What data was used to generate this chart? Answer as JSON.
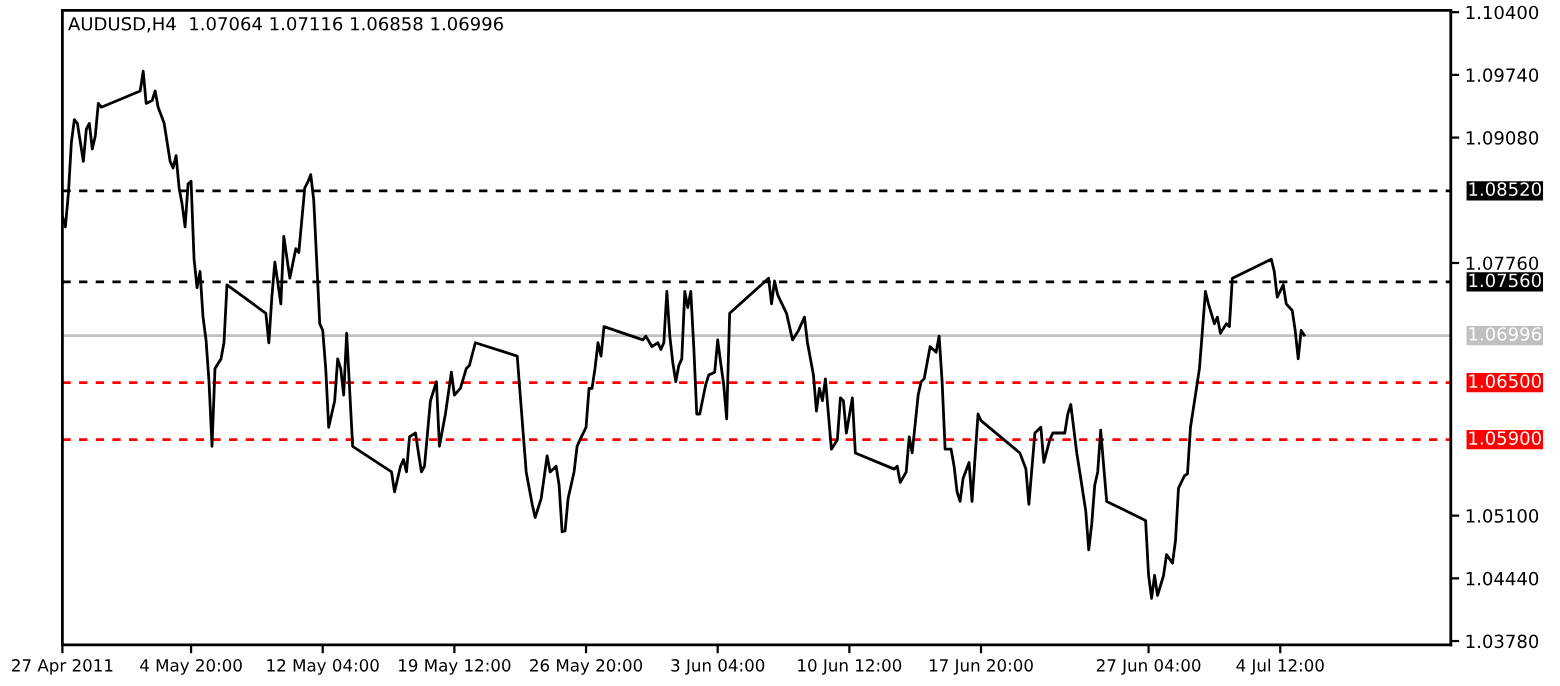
{
  "chart_data": {
    "type": "line",
    "title": "AUDUSD,H4  1.07064 1.07116 1.06858 1.06996",
    "x": [
      "2011-04-27T16:00",
      "2011-04-27T20:00",
      "2011-04-28T00:00",
      "2011-04-28T04:00",
      "2011-04-28T08:00",
      "2011-04-28T12:00",
      "2011-04-28T20:00",
      "2011-04-29T00:00",
      "2011-04-29T04:00",
      "2011-04-29T08:00",
      "2011-04-29T12:00",
      "2011-04-29T16:00",
      "2011-04-29T20:00",
      "2011-05-02T00:00",
      "2011-05-02T04:00",
      "2011-05-02T08:00",
      "2011-05-02T16:00",
      "2011-05-02T20:00",
      "2011-05-03T00:00",
      "2011-05-03T08:00",
      "2011-05-03T16:00",
      "2011-05-03T20:00",
      "2011-05-04T00:00",
      "2011-05-04T04:00",
      "2011-05-04T08:00",
      "2011-05-04T12:00",
      "2011-05-04T16:00",
      "2011-05-04T20:00",
      "2011-05-05T00:00",
      "2011-05-05T04:00",
      "2011-05-05T08:00",
      "2011-05-05T12:00",
      "2011-05-05T16:00",
      "2011-05-05T20:00",
      "2011-05-06T00:00",
      "2011-05-06T04:00",
      "2011-05-06T12:00",
      "2011-05-06T16:00",
      "2011-05-06T20:00",
      "2011-05-09T00:00",
      "2011-05-09T04:00",
      "2011-05-09T08:00",
      "2011-05-09T12:00",
      "2011-05-09T20:00",
      "2011-05-10T00:00",
      "2011-05-10T08:00",
      "2011-05-10T16:00",
      "2011-05-10T20:00",
      "2011-05-11T04:00",
      "2011-05-11T08:00",
      "2011-05-11T12:00",
      "2011-05-11T16:00",
      "2011-05-12T00:00",
      "2011-05-12T04:00",
      "2011-05-12T08:00",
      "2011-05-12T12:00",
      "2011-05-12T20:00",
      "2011-05-13T00:00",
      "2011-05-13T04:00",
      "2011-05-13T08:00",
      "2011-05-13T12:00",
      "2011-05-13T20:00",
      "2011-05-16T00:00",
      "2011-05-16T04:00",
      "2011-05-16T12:00",
      "2011-05-16T16:00",
      "2011-05-16T20:00",
      "2011-05-17T00:00",
      "2011-05-17T08:00",
      "2011-05-17T12:00",
      "2011-05-17T16:00",
      "2011-05-17T20:00",
      "2011-05-18T04:00",
      "2011-05-18T12:00",
      "2011-05-18T16:00",
      "2011-05-19T00:00",
      "2011-05-19T08:00",
      "2011-05-19T12:00",
      "2011-05-19T20:00",
      "2011-05-20T04:00",
      "2011-05-20T08:00",
      "2011-05-20T16:00",
      "2011-05-23T00:00",
      "2011-05-23T04:00",
      "2011-05-23T12:00",
      "2011-05-23T20:00",
      "2011-05-24T00:00",
      "2011-05-24T08:00",
      "2011-05-24T16:00",
      "2011-05-24T20:00",
      "2011-05-25T04:00",
      "2011-05-25T08:00",
      "2011-05-25T12:00",
      "2011-05-25T16:00",
      "2011-05-25T20:00",
      "2011-05-26T04:00",
      "2011-05-26T08:00",
      "2011-05-26T12:00",
      "2011-05-26T20:00",
      "2011-05-27T00:00",
      "2011-05-27T04:00",
      "2011-05-27T08:00",
      "2011-05-27T12:00",
      "2011-05-27T16:00",
      "2011-05-27T20:00",
      "2011-05-30T00:00",
      "2011-05-30T04:00",
      "2011-05-30T12:00",
      "2011-05-30T20:00",
      "2011-05-31T00:00",
      "2011-05-31T04:00",
      "2011-05-31T08:00",
      "2011-05-31T12:00",
      "2011-05-31T16:00",
      "2011-05-31T20:00",
      "2011-06-01T00:00",
      "2011-06-01T04:00",
      "2011-06-01T08:00",
      "2011-06-01T12:00",
      "2011-06-01T16:00",
      "2011-06-01T20:00",
      "2011-06-02T00:00",
      "2011-06-02T04:00",
      "2011-06-02T12:00",
      "2011-06-02T16:00",
      "2011-06-03T00:00",
      "2011-06-03T04:00",
      "2011-06-03T08:00",
      "2011-06-03T12:00",
      "2011-06-03T16:00",
      "2011-06-03T20:00",
      "2011-06-06T00:00",
      "2011-06-06T04:00",
      "2011-06-06T08:00",
      "2011-06-06T12:00",
      "2011-06-06T16:00",
      "2011-06-07T00:00",
      "2011-06-07T08:00",
      "2011-06-07T16:00",
      "2011-06-08T00:00",
      "2011-06-08T04:00",
      "2011-06-08T12:00",
      "2011-06-08T16:00",
      "2011-06-08T20:00",
      "2011-06-09T00:00",
      "2011-06-09T04:00",
      "2011-06-09T08:00",
      "2011-06-09T12:00",
      "2011-06-09T20:00",
      "2011-06-10T00:00",
      "2011-06-10T04:00",
      "2011-06-10T08:00",
      "2011-06-10T16:00",
      "2011-06-10T20:00",
      "2011-06-13T00:00",
      "2011-06-13T04:00",
      "2011-06-13T08:00",
      "2011-06-13T16:00",
      "2011-06-13T20:00",
      "2011-06-14T00:00",
      "2011-06-14T08:00",
      "2011-06-14T12:00",
      "2011-06-14T16:00",
      "2011-06-15T00:00",
      "2011-06-15T08:00",
      "2011-06-15T12:00",
      "2011-06-15T16:00",
      "2011-06-15T20:00",
      "2011-06-16T04:00",
      "2011-06-16T08:00",
      "2011-06-16T12:00",
      "2011-06-16T16:00",
      "2011-06-16T20:00",
      "2011-06-17T04:00",
      "2011-06-17T08:00",
      "2011-06-17T16:00",
      "2011-06-17T20:00",
      "2011-06-20T00:00",
      "2011-06-20T08:00",
      "2011-06-20T12:00",
      "2011-06-20T20:00",
      "2011-06-21T04:00",
      "2011-06-21T08:00",
      "2011-06-21T16:00",
      "2011-06-21T20:00",
      "2011-06-22T04:00",
      "2011-06-22T12:00",
      "2011-06-22T16:00",
      "2011-06-22T20:00",
      "2011-06-23T04:00",
      "2011-06-23T08:00",
      "2011-06-23T16:00",
      "2011-06-23T20:00",
      "2011-06-24T00:00",
      "2011-06-24T04:00",
      "2011-06-24T08:00",
      "2011-06-24T12:00",
      "2011-06-24T16:00",
      "2011-06-24T20:00",
      "2011-06-27T00:00",
      "2011-06-27T04:00",
      "2011-06-27T08:00",
      "2011-06-27T12:00",
      "2011-06-27T16:00",
      "2011-06-28T00:00",
      "2011-06-28T04:00",
      "2011-06-28T12:00",
      "2011-06-28T16:00",
      "2011-06-28T20:00",
      "2011-06-29T04:00",
      "2011-06-29T08:00",
      "2011-06-29T12:00",
      "2011-06-29T20:00",
      "2011-06-30T00:00",
      "2011-06-30T04:00",
      "2011-06-30T08:00",
      "2011-06-30T12:00",
      "2011-06-30T20:00",
      "2011-07-01T00:00",
      "2011-07-01T04:00",
      "2011-07-01T12:00",
      "2011-07-01T16:00",
      "2011-07-01T20:00",
      "2011-07-04T00:00",
      "2011-07-04T04:00",
      "2011-07-04T08:00",
      "2011-07-04T16:00",
      "2011-07-04T20:00",
      "2011-07-05T04:00",
      "2011-07-05T08:00",
      "2011-07-05T12:00",
      "2011-07-05T16:00",
      "2011-07-05T20:00"
    ],
    "series": [
      {
        "color": "#000000",
        "values": [
          1.0825,
          1.0814,
          1.0849,
          1.0903,
          1.0927,
          1.0923,
          1.0883,
          1.0917,
          1.0923,
          1.0896,
          1.091,
          1.0944,
          1.094,
          1.0957,
          1.0978,
          1.0944,
          1.0947,
          1.0957,
          1.094,
          1.0923,
          1.0883,
          1.0876,
          1.0889,
          1.0855,
          1.0838,
          1.0814,
          1.0859,
          1.0862,
          1.078,
          1.075,
          1.0767,
          1.0719,
          1.0695,
          1.0651,
          1.0583,
          1.0665,
          1.0675,
          1.0692,
          1.0753,
          1.0723,
          1.0692,
          1.074,
          1.0777,
          1.0733,
          1.0804,
          1.076,
          1.0791,
          1.0787,
          1.0855,
          1.0861,
          1.0869,
          1.0842,
          1.0712,
          1.0705,
          1.0665,
          1.0603,
          1.0631,
          1.0675,
          1.0665,
          1.0637,
          1.0702,
          1.0583,
          1.0556,
          1.0535,
          1.0562,
          1.0569,
          1.0556,
          1.0593,
          1.0597,
          1.0576,
          1.0556,
          1.0562,
          1.0631,
          1.0651,
          1.0583,
          1.0617,
          1.0661,
          1.0637,
          1.0644,
          1.0665,
          1.0668,
          1.0692,
          1.0678,
          1.0637,
          1.0556,
          1.0522,
          1.0508,
          1.0528,
          1.0573,
          1.0556,
          1.0562,
          1.0542,
          1.0493,
          1.0494,
          1.0528,
          1.0556,
          1.0583,
          1.059,
          1.0603,
          1.0644,
          1.0644,
          1.0665,
          1.0692,
          1.0678,
          1.0709,
          1.0695,
          1.0699,
          1.0688,
          1.0692,
          1.0685,
          1.0692,
          1.0746,
          1.0699,
          1.0671,
          1.0651,
          1.0668,
          1.0675,
          1.0746,
          1.0729,
          1.0746,
          1.0688,
          1.0617,
          1.0617,
          1.0648,
          1.0658,
          1.0661,
          1.0695,
          1.0671,
          1.0648,
          1.0612,
          1.0723,
          1.076,
          1.0733,
          1.0757,
          1.0743,
          1.0736,
          1.0723,
          1.0695,
          1.0705,
          1.0719,
          1.0692,
          1.0658,
          1.062,
          1.0644,
          1.0631,
          1.0654,
          1.0617,
          1.058,
          1.059,
          1.0634,
          1.0631,
          1.0597,
          1.0634,
          1.0576,
          1.0559,
          1.0562,
          1.0545,
          1.0556,
          1.0593,
          1.0576,
          1.0637,
          1.0651,
          1.0654,
          1.0688,
          1.0682,
          1.0699,
          1.0651,
          1.058,
          1.058,
          1.0562,
          1.0535,
          1.0525,
          1.0549,
          1.0566,
          1.0525,
          1.0617,
          1.061,
          1.0576,
          1.0559,
          1.0522,
          1.0597,
          1.0603,
          1.0566,
          1.059,
          1.0597,
          1.0597,
          1.0597,
          1.0617,
          1.0627,
          1.0576,
          1.0556,
          1.0515,
          1.0474,
          1.0501,
          1.0542,
          1.0556,
          1.06,
          1.0562,
          1.0525,
          1.0505,
          1.0447,
          1.0423,
          1.0447,
          1.0426,
          1.0447,
          1.0469,
          1.046,
          1.0484,
          1.0539,
          1.0552,
          1.0554,
          1.0603,
          1.0644,
          1.0665,
          1.0705,
          1.0746,
          1.0733,
          1.0712,
          1.0719,
          1.0702,
          1.0712,
          1.0709,
          1.076,
          1.078,
          1.0767,
          1.074,
          1.0753,
          1.0733,
          1.0726,
          1.0705,
          1.0675,
          1.0705,
          1.07
        ]
      }
    ],
    "xlim": [
      "2011-04-27T16:00",
      "2011-07-14T00:00"
    ],
    "xticks": [
      {
        "value": "2011-04-27T16:00",
        "label": "27 Apr 2011"
      },
      {
        "value": "2011-05-04T20:00",
        "label": "4 May 20:00"
      },
      {
        "value": "2011-05-12T04:00",
        "label": "12 May 04:00"
      },
      {
        "value": "2011-05-19T12:00",
        "label": "19 May 12:00"
      },
      {
        "value": "2011-05-26T20:00",
        "label": "26 May 20:00"
      },
      {
        "value": "2011-06-03T04:00",
        "label": "3 Jun 04:00"
      },
      {
        "value": "2011-06-10T12:00",
        "label": "10 Jun 12:00"
      },
      {
        "value": "2011-06-17T20:00",
        "label": "17 Jun 20:00"
      },
      {
        "value": "2011-06-27T04:00",
        "label": "27 Jun 04:00"
      },
      {
        "value": "2011-07-04T12:00",
        "label": "4 Jul 12:00"
      }
    ],
    "ylim": [
      1.0374,
      1.1042
    ],
    "yticks": [
      {
        "value": 1.104,
        "label": "1.10400"
      },
      {
        "value": 1.0974,
        "label": "1.09740"
      },
      {
        "value": 1.0908,
        "label": "1.09080"
      },
      {
        "value": 1.0776,
        "label": "1.07760"
      },
      {
        "value": 1.051,
        "label": "1.05100"
      },
      {
        "value": 1.0444,
        "label": "1.04440"
      },
      {
        "value": 1.0378,
        "label": "1.03780"
      }
    ],
    "ref_lines": [
      {
        "axis": "y",
        "value": 1.0852,
        "label": "1.08520",
        "color": "#000000",
        "line_style": "dashed"
      },
      {
        "axis": "y",
        "value": 1.0756,
        "label": "1.07560",
        "color": "#000000",
        "line_style": "dashed"
      },
      {
        "axis": "y",
        "value": 1.06996,
        "label": "1.06996",
        "color": "#c0c0c0",
        "line_style": "solid"
      },
      {
        "axis": "y",
        "value": 1.065,
        "label": "1.06500",
        "color": "#ff0000",
        "line_style": "dashed"
      },
      {
        "axis": "y",
        "value": 1.059,
        "label": "1.05900",
        "color": "#ff0000",
        "line_style": "dashed"
      }
    ],
    "grid": false,
    "legend": false,
    "marker": "none",
    "line_style": "solid"
  }
}
